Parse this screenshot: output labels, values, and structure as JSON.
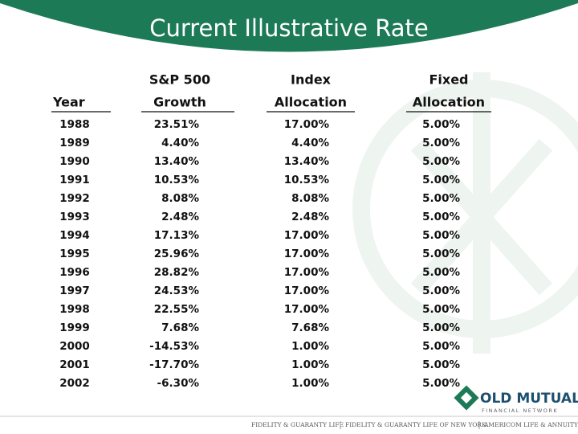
{
  "title": "Current Illustrative Rate",
  "table": {
    "headers": [
      [
        "Year"
      ],
      [
        "S&P 500",
        "Growth"
      ],
      [
        "Index",
        "Allocation"
      ],
      [
        "Fixed",
        "Allocation"
      ]
    ],
    "rows": [
      [
        "1988",
        "23.51%",
        "17.00%",
        "5.00%"
      ],
      [
        "1989",
        "4.40%",
        "4.40%",
        "5.00%"
      ],
      [
        "1990",
        "13.40%",
        "13.40%",
        "5.00%"
      ],
      [
        "1991",
        "10.53%",
        "10.53%",
        "5.00%"
      ],
      [
        "1992",
        "8.08%",
        "8.08%",
        "5.00%"
      ],
      [
        "1993",
        "2.48%",
        "2.48%",
        "5.00%"
      ],
      [
        "1994",
        "17.13%",
        "17.00%",
        "5.00%"
      ],
      [
        "1995",
        "25.96%",
        "17.00%",
        "5.00%"
      ],
      [
        "1996",
        "28.82%",
        "17.00%",
        "5.00%"
      ],
      [
        "1997",
        "24.53%",
        "17.00%",
        "5.00%"
      ],
      [
        "1998",
        "22.55%",
        "17.00%",
        "5.00%"
      ],
      [
        "1999",
        "7.68%",
        "7.68%",
        "5.00%"
      ],
      [
        "2000",
        "-14.53%",
        "1.00%",
        "5.00%"
      ],
      [
        "2001",
        "-17.70%",
        "1.00%",
        "5.00%"
      ],
      [
        "2002",
        "-6.30%",
        "1.00%",
        "5.00%"
      ]
    ]
  },
  "logo": {
    "name": "OLD MUTUAL",
    "tagline": "FINANCIAL NETWORK"
  },
  "footer": [
    "FIDELITY & GUARANTY LIFE",
    "FIDELITY & GUARANTY LIFE OF NEW YORK",
    "AMERICOM LIFE & ANNUITY"
  ]
}
